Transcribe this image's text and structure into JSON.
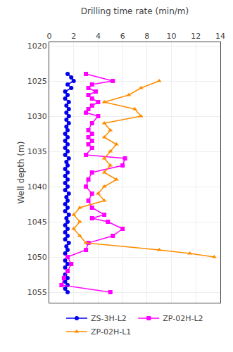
{
  "chart_data": {
    "type": "line",
    "xlabel": "Drilling time rate (min/m)",
    "ylabel": "Well depth (m)",
    "xlim": [
      0,
      14
    ],
    "ylim": [
      1056.5,
      1019.5
    ],
    "xticks": [
      0,
      2,
      4,
      6,
      8,
      10,
      12,
      14
    ],
    "yticks": [
      1020,
      1025,
      1030,
      1035,
      1040,
      1045,
      1050,
      1055
    ],
    "grid": true,
    "legend": "bottom",
    "series": [
      {
        "name": "ZS-3H-L2",
        "color": "#0000EE",
        "marker": "circle",
        "x": [
          1.5,
          1.8,
          2.0,
          1.5,
          1.8,
          1.3,
          1.5,
          1.3,
          1.6,
          1.4,
          1.6,
          1.4,
          1.6,
          1.4,
          1.6,
          1.4,
          1.5,
          1.3,
          1.5,
          1.3,
          1.5,
          1.3,
          1.5,
          1.3,
          1.6,
          1.4,
          1.5,
          1.3,
          1.5,
          1.3,
          1.5,
          1.3,
          1.5,
          1.3,
          1.6,
          1.4,
          1.5,
          1.3,
          1.5,
          1.3,
          1.6,
          1.4,
          1.5,
          1.3,
          1.5,
          1.3,
          1.5,
          1.3,
          1.6,
          1.4,
          1.5,
          1.3,
          1.5,
          1.3,
          1.5,
          1.3,
          1.5,
          1.3,
          1.5,
          1.3,
          1.5,
          1.3,
          1.5
        ],
        "values": [
          1024.0,
          1024.5,
          1025.0,
          1025.5,
          1026.0,
          1026.5,
          1027.0,
          1027.5,
          1028.0,
          1028.5,
          1029.0,
          1029.5,
          1030.0,
          1030.5,
          1031.0,
          1031.5,
          1032.0,
          1032.5,
          1033.0,
          1033.5,
          1034.0,
          1034.5,
          1035.0,
          1035.5,
          1036.0,
          1036.5,
          1037.0,
          1037.5,
          1038.0,
          1038.5,
          1039.0,
          1039.5,
          1040.0,
          1040.5,
          1041.0,
          1041.5,
          1042.0,
          1042.5,
          1043.0,
          1043.5,
          1044.0,
          1044.5,
          1045.0,
          1045.5,
          1046.0,
          1046.5,
          1047.0,
          1047.5,
          1048.0,
          1048.5,
          1049.0,
          1049.5,
          1050.0,
          1050.5,
          1051.0,
          1051.5,
          1052.0,
          1052.5,
          1053.0,
          1053.5,
          1054.0,
          1054.5,
          1055.0
        ]
      },
      {
        "name": "ZP-02H-L2",
        "color": "#FF00FF",
        "marker": "square",
        "x": [
          3.0,
          5.2,
          3.5,
          3.2,
          3.8,
          3.2,
          3.5,
          4.0,
          3.5,
          3.2,
          3.0,
          4.0,
          3.5,
          3.2,
          3.5,
          3.2,
          3.5,
          3.2,
          3.5,
          3.0,
          6.2,
          6.0,
          3.5,
          3.2,
          3.0,
          3.5,
          3.2,
          3.5,
          4.5,
          3.5,
          4.8,
          6.0,
          5.2,
          3.2,
          3.0,
          1.5,
          1.8,
          1.5,
          1.2,
          1.0,
          5.0
        ],
        "values": [
          1024.0,
          1025.0,
          1025.5,
          1026.0,
          1026.5,
          1027.0,
          1027.5,
          1028.0,
          1028.5,
          1029.0,
          1029.5,
          1030.0,
          1031.0,
          1032.0,
          1032.5,
          1033.0,
          1033.5,
          1034.0,
          1034.5,
          1035.5,
          1036.0,
          1037.0,
          1038.0,
          1039.0,
          1040.0,
          1041.0,
          1042.0,
          1043.0,
          1044.0,
          1044.5,
          1045.0,
          1046.0,
          1047.0,
          1048.0,
          1049.0,
          1050.0,
          1051.0,
          1052.0,
          1053.0,
          1054.0,
          1055.0
        ]
      },
      {
        "name": "ZP-02H-L1",
        "color": "#FF8C00",
        "marker": "triangle-up",
        "x": [
          9.0,
          7.5,
          6.5,
          4.5,
          7.0,
          7.5,
          4.5,
          5.0,
          4.5,
          5.5,
          5.0,
          4.5,
          5.0,
          4.5,
          5.5,
          4.5,
          4.0,
          4.5,
          2.5,
          2.0,
          2.5,
          2.0,
          2.5,
          3.0,
          9.0,
          11.5,
          13.5
        ],
        "values": [
          1025.0,
          1026.0,
          1027.0,
          1028.0,
          1029.0,
          1030.0,
          1031.0,
          1032.0,
          1033.0,
          1034.0,
          1035.0,
          1036.0,
          1037.0,
          1038.0,
          1039.0,
          1040.0,
          1041.0,
          1042.0,
          1043.0,
          1044.0,
          1045.0,
          1046.0,
          1047.0,
          1048.0,
          1049.0,
          1049.5,
          1050.0
        ]
      }
    ]
  }
}
